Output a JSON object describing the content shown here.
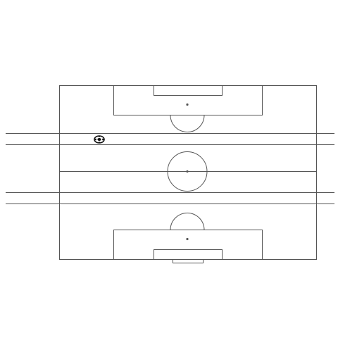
{
  "game": {
    "objects": [
      {
        "kind": "field-boundary",
        "icon": "rectangle"
      },
      {
        "kind": "halfway-line",
        "icon": "line"
      },
      {
        "kind": "center-circle",
        "icon": "circle"
      },
      {
        "kind": "top-penalty-area",
        "icon": "rectangle"
      },
      {
        "kind": "top-goal-area",
        "icon": "rectangle"
      },
      {
        "kind": "top-penalty-spot",
        "icon": "dot"
      },
      {
        "kind": "top-penalty-arc",
        "icon": "arc"
      },
      {
        "kind": "bottom-penalty-area",
        "icon": "rectangle"
      },
      {
        "kind": "bottom-goal-area",
        "icon": "rectangle"
      },
      {
        "kind": "bottom-penalty-spot",
        "icon": "dot"
      },
      {
        "kind": "bottom-penalty-arc",
        "icon": "arc"
      },
      {
        "kind": "bottom-goal",
        "icon": "rectangle"
      },
      {
        "kind": "horizontal-road-upper",
        "icon": "double-line"
      },
      {
        "kind": "horizontal-road-lower",
        "icon": "double-line"
      },
      {
        "kind": "ball",
        "icon": "soccer-ball-icon"
      }
    ],
    "colors": {
      "background": "#ffffff",
      "lines": "#555555",
      "ball": "#111111"
    }
  }
}
